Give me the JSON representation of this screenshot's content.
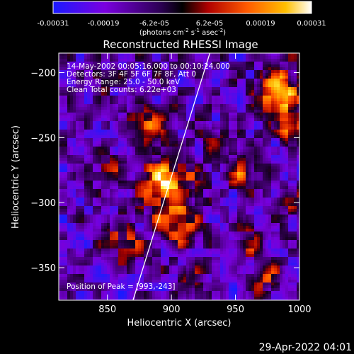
{
  "colorbar": {
    "ticks": [
      "-0.00031",
      "-0.00019",
      "-6.2e-05",
      "6.2e-05",
      "0.00019",
      "0.00031"
    ],
    "unit_main": "(photons cm",
    "unit_exp1": "-2",
    "unit_s": " s",
    "unit_exp2": "-1",
    "unit_asec": " asec",
    "unit_exp3": "-2",
    "unit_close": ")"
  },
  "info": {
    "line1": "14-May-2002 00:05:16.000 to 00:10:24.000",
    "line2": "Detectors: 3F 4F 5F 6F 7F 8F, Att 0",
    "line3": "Energy Range: 25.0 - 50.0 keV",
    "line4": "Clean     Total counts: 6.22e+03"
  },
  "peak_label": "Position of Peak = [993,-243]",
  "footer_timestamp": "29-Apr-2022 04:01",
  "chart_data": {
    "type": "heatmap",
    "title": "Reconstructed RHESSI Image",
    "xlabel": "Heliocentric X (arcsec)",
    "ylabel": "Heliocentric Y (arcsec)",
    "xlim": [
      812,
      1000
    ],
    "ylim": [
      -375,
      -185
    ],
    "xticks": [
      850,
      900,
      950,
      1000
    ],
    "yticks": [
      -200,
      -250,
      -300,
      -350
    ],
    "colormap": [
      "#1a1aff",
      "#6a00c8",
      "#3a006a",
      "#000000",
      "#a00000",
      "#ff4000",
      "#ffa000",
      "#ffff40",
      "#ffffff"
    ],
    "limb_line": [
      [
        870,
        -375
      ],
      [
        930,
        -185
      ]
    ],
    "peak": [
      993,
      -243
    ]
  }
}
